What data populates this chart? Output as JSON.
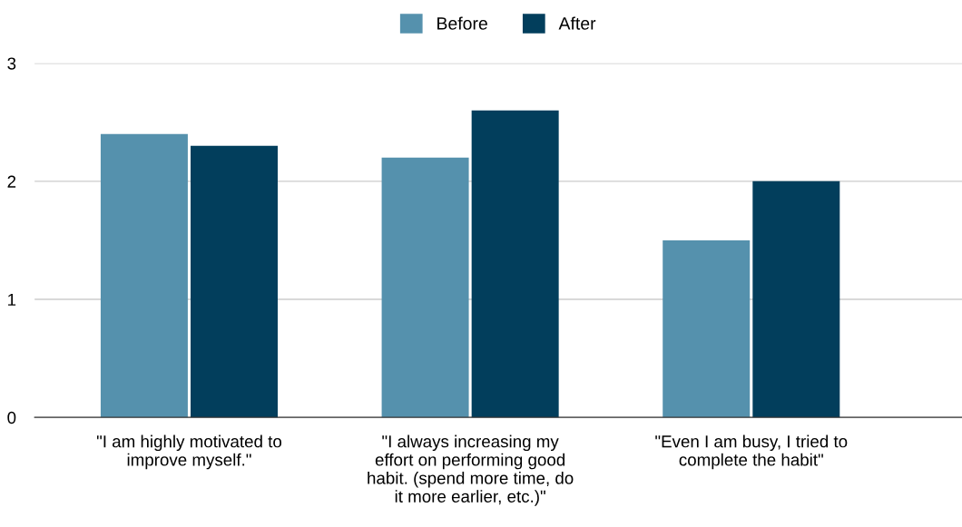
{
  "chart_data": {
    "type": "bar",
    "categories": [
      "\"I am highly motivated to\nimprove myself.\"",
      "\"I always increasing my\neffort on performing good\nhabit. (spend more time, do\nit more earlier, etc.)\"",
      "\"Even I am busy, I tried to\ncomplete the habit\""
    ],
    "series": [
      {
        "name": "Before",
        "color": "#5591ad",
        "values": [
          2.4,
          2.2,
          1.5
        ]
      },
      {
        "name": "After",
        "color": "#023e5c",
        "values": [
          2.3,
          2.6,
          2.0
        ]
      }
    ],
    "ylim": [
      0,
      3
    ],
    "yticks": [
      0,
      1,
      2,
      3
    ],
    "grid": "y",
    "legend": "top"
  }
}
